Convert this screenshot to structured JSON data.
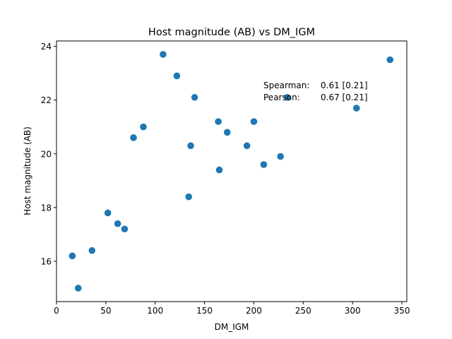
{
  "chart_data": {
    "type": "scatter",
    "title": "Host magnitude (AB) vs DM_IGM",
    "xlabel": "DM_IGM",
    "ylabel": "Host magnitude (AB)",
    "xlim": [
      0,
      355
    ],
    "ylim": [
      14.5,
      24.2
    ],
    "xticks": [
      0,
      50,
      100,
      150,
      200,
      250,
      300,
      350
    ],
    "yticks": [
      16,
      18,
      20,
      22,
      24
    ],
    "grid": false,
    "marker_color": "#1f77b4",
    "annotations": [
      {
        "label": "Spearman:",
        "value": "0.61 [0.21]"
      },
      {
        "label": "Pearson:",
        "value": "0.67 [0.21]"
      }
    ],
    "points": [
      {
        "x": 16,
        "y": 16.2
      },
      {
        "x": 22,
        "y": 15.0
      },
      {
        "x": 36,
        "y": 16.4
      },
      {
        "x": 52,
        "y": 17.8
      },
      {
        "x": 62,
        "y": 17.4
      },
      {
        "x": 69,
        "y": 17.2
      },
      {
        "x": 78,
        "y": 20.6
      },
      {
        "x": 88,
        "y": 21.0
      },
      {
        "x": 108,
        "y": 23.7
      },
      {
        "x": 122,
        "y": 22.9
      },
      {
        "x": 134,
        "y": 18.4
      },
      {
        "x": 136,
        "y": 20.3
      },
      {
        "x": 140,
        "y": 22.1
      },
      {
        "x": 164,
        "y": 21.2
      },
      {
        "x": 165,
        "y": 19.4
      },
      {
        "x": 173,
        "y": 20.8
      },
      {
        "x": 193,
        "y": 20.3
      },
      {
        "x": 200,
        "y": 21.2
      },
      {
        "x": 210,
        "y": 19.6
      },
      {
        "x": 227,
        "y": 19.9
      },
      {
        "x": 234,
        "y": 22.1
      },
      {
        "x": 304,
        "y": 21.7
      },
      {
        "x": 338,
        "y": 23.5
      }
    ]
  }
}
